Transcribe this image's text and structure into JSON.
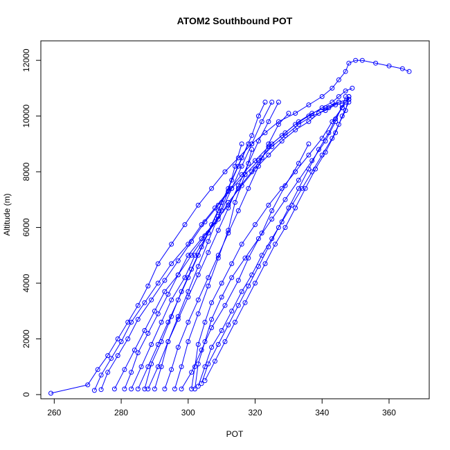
{
  "chart_data": {
    "type": "line",
    "title": "ATOM2 Southbound POT",
    "xlabel": "POT",
    "ylabel": "Altitude (m)",
    "xlim": [
      256,
      372
    ],
    "ylim": [
      -150,
      12700
    ],
    "xticks": [
      260,
      280,
      300,
      320,
      340,
      360
    ],
    "yticks": [
      0,
      2000,
      4000,
      6000,
      8000,
      10000,
      12000
    ],
    "grid": false,
    "legend": "none",
    "color": "#0000ff",
    "marker": "open-circle",
    "series": [
      {
        "x": [
          259,
          270,
          273,
          276,
          279,
          282,
          285,
          288,
          291,
          295,
          299,
          303,
          307,
          311,
          315,
          319,
          323,
          327,
          332,
          336,
          340,
          343,
          345,
          347,
          348,
          350,
          352,
          356,
          360,
          364,
          366
        ],
        "y": [
          50,
          350,
          900,
          1400,
          2000,
          2600,
          3200,
          3900,
          4700,
          5400,
          6100,
          6800,
          7400,
          8000,
          8500,
          9000,
          9400,
          9800,
          10100,
          10400,
          10700,
          11000,
          11300,
          11600,
          11900,
          12000,
          12000,
          11900,
          11800,
          11700,
          11600
        ]
      },
      {
        "x": [
          272,
          274,
          277,
          280,
          283,
          287,
          291,
          295,
          300,
          304,
          308,
          312,
          316,
          320,
          324,
          328,
          332,
          336,
          340,
          343,
          345,
          347,
          349
        ],
        "y": [
          150,
          700,
          1300,
          1900,
          2600,
          3300,
          4000,
          4700,
          5400,
          6100,
          6700,
          7300,
          7900,
          8400,
          8900,
          9300,
          9700,
          10000,
          10300,
          10500,
          10700,
          10900,
          11000
        ]
      },
      {
        "x": [
          274,
          276,
          279,
          282,
          285,
          289,
          293,
          297,
          301,
          305,
          309,
          313,
          317,
          321,
          325,
          329,
          333,
          337,
          341,
          344,
          347
        ],
        "y": [
          180,
          800,
          1400,
          2000,
          2700,
          3400,
          4100,
          4800,
          5500,
          6200,
          6800,
          7400,
          7900,
          8400,
          8900,
          9300,
          9700,
          10000,
          10200,
          10400,
          10500
        ]
      },
      {
        "x": [
          278,
          281,
          284,
          287,
          290,
          293,
          297,
          300,
          304,
          308,
          312,
          315,
          319,
          322,
          325,
          329,
          333,
          337,
          341,
          345,
          348
        ],
        "y": [
          200,
          900,
          1600,
          2300,
          3000,
          3700,
          4300,
          5000,
          5600,
          6200,
          6800,
          7400,
          8000,
          8500,
          9000,
          9400,
          9800,
          10100,
          10300,
          10500,
          10600
        ]
      },
      {
        "x": [
          281,
          283,
          285,
          288,
          291,
          294,
          297,
          301,
          305,
          309,
          312,
          316,
          320,
          324,
          328,
          332,
          336,
          339,
          342,
          345,
          348
        ],
        "y": [
          200,
          800,
          1500,
          2200,
          2900,
          3600,
          4300,
          5000,
          5700,
          6300,
          6900,
          7500,
          8100,
          8600,
          9100,
          9500,
          9800,
          10100,
          10300,
          10500,
          10600
        ]
      },
      {
        "x": [
          283,
          286,
          289,
          292,
          295,
          299,
          302,
          306,
          310,
          313,
          316,
          319,
          322,
          325
        ],
        "y": [
          200,
          1000,
          1800,
          2600,
          3400,
          4200,
          5000,
          5800,
          6600,
          7400,
          8200,
          9000,
          9800,
          10500
        ]
      },
      {
        "x": [
          287,
          289,
          292,
          295,
          298,
          301,
          304,
          307,
          310,
          313,
          316,
          319,
          321,
          323
        ],
        "y": [
          200,
          1100,
          1900,
          2800,
          3700,
          4500,
          5300,
          6100,
          6900,
          7700,
          8500,
          9300,
          10000,
          10500
        ]
      },
      {
        "x": [
          290,
          292,
          294,
          297,
          300,
          303,
          306,
          309,
          312,
          315,
          318,
          321,
          324,
          327
        ],
        "y": [
          200,
          1000,
          1900,
          2700,
          3500,
          4300,
          5100,
          5900,
          6700,
          7500,
          8300,
          9100,
          9800,
          10500
        ]
      },
      {
        "x": [
          293,
          295,
          297,
          300,
          303,
          306,
          309,
          312,
          315,
          318,
          321,
          324,
          327,
          330
        ],
        "y": [
          200,
          900,
          1700,
          2600,
          3400,
          4200,
          5000,
          5800,
          6600,
          7400,
          8200,
          9000,
          9700,
          10100
        ]
      },
      {
        "x": [
          296,
          298,
          300,
          303,
          306,
          309,
          312,
          314,
          317,
          319
        ],
        "y": [
          200,
          1000,
          1900,
          2900,
          3900,
          4900,
          5900,
          6900,
          7900,
          8800
        ]
      },
      {
        "x": [
          301,
          302,
          303,
          305,
          307,
          310,
          313,
          316,
          320,
          324,
          328,
          332,
          336,
          340,
          343,
          346,
          348
        ],
        "y": [
          200,
          1000,
          1800,
          2600,
          3300,
          4000,
          4700,
          5400,
          6100,
          6800,
          7400,
          8000,
          8600,
          9200,
          9800,
          10300,
          10700
        ]
      },
      {
        "x": [
          302,
          303,
          305,
          307,
          310,
          313,
          317,
          321,
          325,
          329,
          333,
          337,
          341,
          344,
          346
        ],
        "y": [
          200,
          1100,
          1900,
          2700,
          3500,
          4200,
          4900,
          5600,
          6300,
          7000,
          7700,
          8400,
          9100,
          9800,
          10400
        ]
      },
      {
        "x": [
          303,
          305,
          307,
          310,
          313,
          316,
          319,
          322,
          325,
          328,
          331,
          334,
          337,
          340,
          343,
          345,
          347,
          348
        ],
        "y": [
          300,
          1000,
          1700,
          2300,
          3000,
          3700,
          4300,
          5000,
          5600,
          6200,
          6800,
          7400,
          8000,
          8600,
          9200,
          9700,
          10200,
          10700
        ]
      },
      {
        "x": [
          304,
          306,
          309,
          312,
          315,
          318,
          321,
          324,
          327,
          330,
          333,
          336,
          339,
          342,
          344,
          346,
          347
        ],
        "y": [
          400,
          1100,
          1800,
          2500,
          3200,
          3900,
          4600,
          5300,
          6000,
          6700,
          7400,
          8100,
          8800,
          9400,
          9900,
          10300,
          10700
        ]
      },
      {
        "x": [
          305,
          308,
          311,
          314,
          317,
          320,
          323,
          326,
          329,
          332,
          335,
          338,
          341,
          344,
          346,
          348
        ],
        "y": [
          500,
          1200,
          1900,
          2600,
          3300,
          4000,
          4700,
          5400,
          6000,
          6700,
          7400,
          8100,
          8700,
          9400,
          10000,
          10500
        ]
      },
      {
        "x": [
          298,
          301,
          304,
          307,
          311,
          315,
          318,
          322,
          325,
          329,
          333,
          336
        ],
        "y": [
          200,
          800,
          1600,
          2400,
          3200,
          4100,
          4900,
          5800,
          6600,
          7500,
          8300,
          9000
        ]
      },
      {
        "x": [
          288,
          291,
          294,
          297,
          300,
          303,
          306,
          309,
          312,
          314,
          316
        ],
        "y": [
          200,
          1000,
          1900,
          2800,
          3700,
          4600,
          5500,
          6400,
          7300,
          8200,
          9000
        ]
      },
      {
        "x": [
          285,
          288,
          291,
          294,
          297,
          300,
          303,
          306,
          309,
          312,
          315,
          318
        ],
        "y": [
          200,
          1000,
          1800,
          2600,
          3400,
          4200,
          5000,
          5800,
          6600,
          7400,
          8200,
          9000
        ]
      }
    ]
  }
}
